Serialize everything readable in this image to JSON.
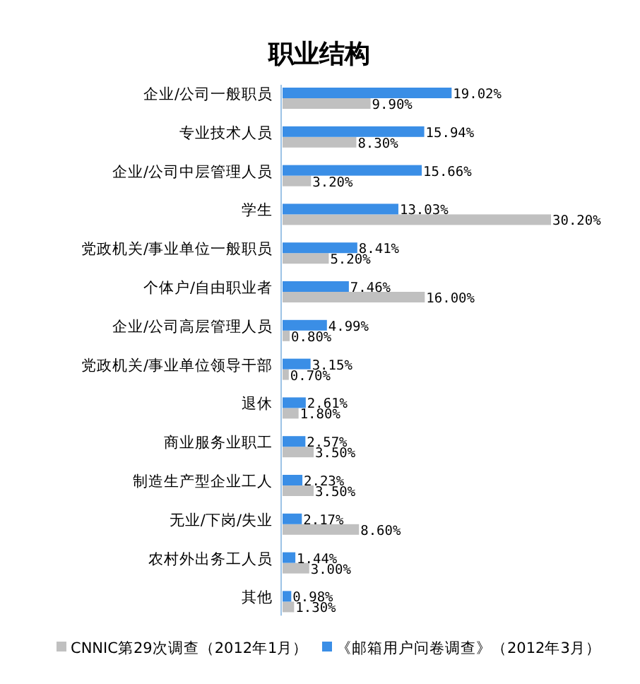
{
  "chart_data": {
    "type": "bar",
    "orientation": "horizontal",
    "title": "职业结构",
    "legend": "bottom",
    "categories": [
      "企业/公司一般职员",
      "专业技术人员",
      "企业/公司中层管理人员",
      "学生",
      "党政机关/事业单位一般职员",
      "个体户/自由职业者",
      "企业/公司高层管理人员",
      "党政机关/事业单位领导干部",
      "退休",
      "商业服务业职工",
      "制造生产型企业工人",
      "无业/下岗/失业",
      "农村外出务工人员",
      "其他"
    ],
    "series": [
      {
        "name": "CNNIC第29次调查（2012年1月）",
        "color": "#c0c0c0",
        "values": [
          9.9,
          8.3,
          3.2,
          30.2,
          5.2,
          16.0,
          0.8,
          0.7,
          1.8,
          3.5,
          3.5,
          8.6,
          3.0,
          1.3
        ],
        "value_labels": [
          "9.90%",
          "8.30%",
          "3.20%",
          "30.20%",
          "5.20%",
          "16.00%",
          "0.80%",
          "0.70%",
          "1.80%",
          "3.50%",
          "3.50%",
          "8.60%",
          "3.00%",
          "1.30%"
        ]
      },
      {
        "name": "《邮箱用户问卷调查》（2012年3月）",
        "color": "#3a8ee6",
        "values": [
          19.02,
          15.94,
          15.66,
          13.03,
          8.41,
          7.46,
          4.99,
          3.15,
          2.61,
          2.57,
          2.23,
          2.17,
          1.44,
          0.98
        ],
        "value_labels": [
          "19.02%",
          "15.94%",
          "15.66%",
          "13.03%",
          "8.41%",
          "7.46%",
          "4.99%",
          "3.15%",
          "2.61%",
          "2.57%",
          "2.23%",
          "2.17%",
          "1.44%",
          "0.98%"
        ]
      }
    ]
  }
}
